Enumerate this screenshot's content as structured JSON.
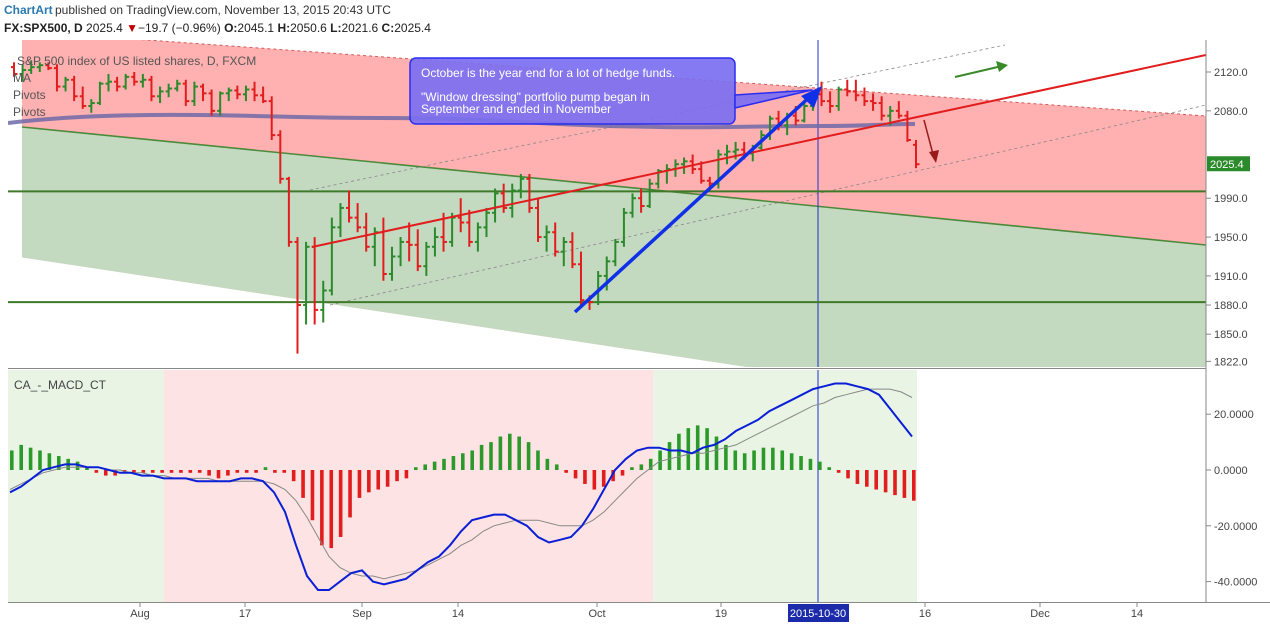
{
  "header": {
    "brand": "ChartArt",
    "published": "published on TradingView.com, November 13, 2015 20:43 UTC"
  },
  "symbol_bar": {
    "symbol": "FX:SPX500, D",
    "price": "2025.4",
    "change_arrow": "▼",
    "change": "−19.7 (−0.96%)",
    "o_label": "O:",
    "o": "2045.1",
    "h_label": "H:",
    "h": "2050.6",
    "l_label": "L:",
    "l": "2021.6",
    "c_label": "C:",
    "c": "2025.4"
  },
  "legend": {
    "title": "S&P 500 index of US listed shares, D, FXCM",
    "items": [
      "MA",
      "Pivots",
      "Pivots"
    ]
  },
  "annotation": {
    "line1": "October is the year end for a lot of hedge funds.",
    "line2": "\"Window dressing\" portfolio pump began in",
    "line3": "September and ended in November"
  },
  "indicator_label": "CA_-_MACD_CT",
  "crosshair_date": "2015-10-30",
  "last_price_label": "2025.4",
  "colors": {
    "up": "#2b8a2b",
    "down": "#e11d1d",
    "red_zone": "#ffb0b0",
    "green_zone": "#c3d9c0",
    "macd_line": "#0a1fd6",
    "signal_line": "#888888",
    "hist_up": "#2b9a2b",
    "hist_down": "#e11d1d",
    "trend_red": "#e11d1d",
    "trend_blue": "#1030e8",
    "annotation_bg": "#7b6ff0"
  },
  "chart_data": [
    {
      "type": "bar",
      "subtype": "ohlc",
      "title": "S&P 500 index of US listed shares, D, FXCM",
      "x_ticks": [
        "Aug",
        "17",
        "Sep",
        "14",
        "Oct",
        "19",
        "2015-10-30",
        "16",
        "Dec",
        "14"
      ],
      "y_ticks": [
        1822,
        1850,
        1880,
        1910,
        1950,
        1990,
        2080,
        2120
      ],
      "ylim": [
        1822,
        2150
      ],
      "horizontal_levels": [
        1997,
        1883
      ],
      "ohlc": [
        [
          2125,
          2130,
          2115,
          2118
        ],
        [
          2118,
          2128,
          2110,
          2122
        ],
        [
          2122,
          2132,
          2118,
          2125
        ],
        [
          2125,
          2130,
          2120,
          2127
        ],
        [
          2127,
          2130,
          2122,
          2124
        ],
        [
          2124,
          2128,
          2100,
          2105
        ],
        [
          2105,
          2115,
          2100,
          2112
        ],
        [
          2112,
          2116,
          2090,
          2095
        ],
        [
          2095,
          2105,
          2082,
          2085
        ],
        [
          2085,
          2092,
          2078,
          2088
        ],
        [
          2088,
          2110,
          2086,
          2108
        ],
        [
          2108,
          2118,
          2100,
          2110
        ],
        [
          2110,
          2115,
          2100,
          2105
        ],
        [
          2105,
          2118,
          2102,
          2115
        ],
        [
          2115,
          2120,
          2106,
          2110
        ],
        [
          2110,
          2118,
          2104,
          2112
        ],
        [
          2112,
          2116,
          2090,
          2095
        ],
        [
          2095,
          2105,
          2088,
          2100
        ],
        [
          2100,
          2108,
          2094,
          2103
        ],
        [
          2103,
          2112,
          2100,
          2108
        ],
        [
          2108,
          2112,
          2085,
          2090
        ],
        [
          2090,
          2110,
          2085,
          2105
        ],
        [
          2105,
          2108,
          2090,
          2098
        ],
        [
          2098,
          2102,
          2075,
          2080
        ],
        [
          2080,
          2100,
          2075,
          2098
        ],
        [
          2098,
          2104,
          2090,
          2101
        ],
        [
          2101,
          2106,
          2092,
          2097
        ],
        [
          2097,
          2106,
          2090,
          2102
        ],
        [
          2102,
          2110,
          2090,
          2096
        ],
        [
          2096,
          2105,
          2088,
          2090
        ],
        [
          2090,
          2095,
          2050,
          2055
        ],
        [
          2055,
          2060,
          2005,
          2010
        ],
        [
          2010,
          2012,
          1940,
          1945
        ],
        [
          1945,
          1950,
          1830,
          1880
        ],
        [
          1880,
          1945,
          1860,
          1940
        ],
        [
          1940,
          1950,
          1860,
          1875
        ],
        [
          1875,
          1905,
          1862,
          1895
        ],
        [
          1895,
          1970,
          1890,
          1960
        ],
        [
          1960,
          1985,
          1950,
          1980
        ],
        [
          1980,
          1998,
          1965,
          1970
        ],
        [
          1970,
          1985,
          1955,
          1960
        ],
        [
          1960,
          1975,
          1935,
          1940
        ],
        [
          1940,
          1960,
          1920,
          1955
        ],
        [
          1955,
          1970,
          1905,
          1912
        ],
        [
          1912,
          1940,
          1905,
          1930
        ],
        [
          1930,
          1950,
          1920,
          1945
        ],
        [
          1945,
          1965,
          1925,
          1942
        ],
        [
          1942,
          1958,
          1915,
          1920
        ],
        [
          1920,
          1945,
          1910,
          1940
        ],
        [
          1940,
          1960,
          1930,
          1950
        ],
        [
          1950,
          1975,
          1935,
          1945
        ],
        [
          1945,
          1975,
          1940,
          1970
        ],
        [
          1970,
          1990,
          1955,
          1965
        ],
        [
          1965,
          1978,
          1940,
          1945
        ],
        [
          1945,
          1965,
          1935,
          1960
        ],
        [
          1960,
          1980,
          1950,
          1975
        ],
        [
          1975,
          2000,
          1965,
          1995
        ],
        [
          1995,
          2005,
          1975,
          1980
        ],
        [
          1980,
          2005,
          1970,
          1998
        ],
        [
          1998,
          2015,
          1990,
          2010
        ],
        [
          2010,
          2015,
          1975,
          1980
        ],
        [
          1980,
          1990,
          1945,
          1950
        ],
        [
          1950,
          1962,
          1935,
          1955
        ],
        [
          1955,
          1965,
          1930,
          1935
        ],
        [
          1935,
          1950,
          1920,
          1945
        ],
        [
          1945,
          1955,
          1918,
          1922
        ],
        [
          1922,
          1935,
          1880,
          1885
        ],
        [
          1885,
          1890,
          1875,
          1883
        ],
        [
          1883,
          1915,
          1880,
          1910
        ],
        [
          1910,
          1930,
          1895,
          1925
        ],
        [
          1925,
          1948,
          1920,
          1945
        ],
        [
          1945,
          1980,
          1940,
          1975
        ],
        [
          1975,
          1995,
          1970,
          1990
        ],
        [
          1990,
          2000,
          1975,
          1982
        ],
        [
          1982,
          2010,
          1980,
          2005
        ],
        [
          2005,
          2020,
          2000,
          2018
        ],
        [
          2018,
          2025,
          2005,
          2020
        ],
        [
          2020,
          2030,
          2012,
          2025
        ],
        [
          2025,
          2032,
          2015,
          2028
        ],
        [
          2028,
          2035,
          2015,
          2020
        ],
        [
          2020,
          2028,
          2005,
          2008
        ],
        [
          2008,
          2012,
          1998,
          2005
        ],
        [
          2005,
          2040,
          2000,
          2035
        ],
        [
          2035,
          2045,
          2025,
          2038
        ],
        [
          2038,
          2048,
          2030,
          2040
        ],
        [
          2040,
          2048,
          2030,
          2036
        ],
        [
          2036,
          2045,
          2028,
          2042
        ],
        [
          2042,
          2060,
          2040,
          2055
        ],
        [
          2055,
          2075,
          2050,
          2072
        ],
        [
          2072,
          2080,
          2060,
          2065
        ],
        [
          2065,
          2078,
          2055,
          2075
        ],
        [
          2075,
          2085,
          2065,
          2070
        ],
        [
          2070,
          2088,
          2068,
          2085
        ],
        [
          2085,
          2100,
          2080,
          2097
        ],
        [
          2097,
          2110,
          2085,
          2090
        ],
        [
          2090,
          2100,
          2078,
          2085
        ],
        [
          2085,
          2105,
          2080,
          2102
        ],
        [
          2102,
          2112,
          2095,
          2100
        ],
        [
          2100,
          2112,
          2090,
          2096
        ],
        [
          2096,
          2104,
          2085,
          2090
        ],
        [
          2090,
          2098,
          2080,
          2088
        ],
        [
          2088,
          2095,
          2070,
          2075
        ],
        [
          2075,
          2085,
          2065,
          2080
        ],
        [
          2080,
          2090,
          2072,
          2075
        ],
        [
          2075,
          2080,
          2048,
          2050
        ],
        [
          2045,
          2050,
          2021,
          2025
        ]
      ]
    },
    {
      "type": "bar",
      "subtype": "macd",
      "title": "CA_-_MACD_CT",
      "y_ticks": [
        20.0,
        0.0,
        -20.0,
        -40.0
      ],
      "ylim": [
        -48,
        33
      ],
      "histogram": [
        7,
        9,
        8,
        7,
        6,
        5,
        4,
        3,
        1,
        -1,
        -2,
        -2,
        -1,
        -1,
        -1,
        -1,
        -1,
        -1,
        -1,
        -1,
        -1,
        -2,
        -3,
        -2,
        -1,
        -1,
        -1,
        1,
        -1,
        -1,
        -4,
        -10,
        -18,
        -27,
        -28,
        -24,
        -17,
        -10,
        -8,
        -7,
        -6,
        -4,
        -3,
        1,
        2,
        3,
        4,
        5,
        6,
        7,
        9,
        10,
        12,
        13,
        12,
        10,
        7,
        4,
        2,
        -1,
        -3,
        -5,
        -7,
        -6,
        -4,
        -2,
        1,
        2,
        4,
        7,
        10,
        13,
        15,
        16,
        15,
        12,
        9,
        7,
        6,
        7,
        8,
        8,
        7,
        6,
        5,
        4,
        3,
        1,
        -1,
        -3,
        -5,
        -6,
        -7,
        -8,
        -9,
        -10,
        -11
      ],
      "macd": [
        -8,
        -6,
        -3,
        0,
        1,
        2,
        2,
        1,
        1,
        0,
        -1,
        -1,
        -2,
        -2,
        -3,
        -3,
        -3,
        -4,
        -4,
        -4,
        -4,
        -3,
        -3,
        -4,
        -8,
        -15,
        -27,
        -38,
        -43,
        -43,
        -40,
        -37,
        -36,
        -40,
        -41,
        -40,
        -39,
        -36,
        -33,
        -31,
        -27,
        -22,
        -18,
        -17,
        -16,
        -16,
        -18,
        -20,
        -24,
        -26,
        -25,
        -24,
        -20,
        -14,
        -7,
        0,
        4,
        7,
        8,
        8,
        7,
        7,
        6,
        8,
        9,
        11,
        14,
        16,
        18,
        21,
        23,
        25,
        27,
        29,
        30,
        31,
        31,
        30,
        29,
        27,
        22,
        17,
        12
      ],
      "signal": [
        -7,
        -5,
        -3,
        -1,
        0,
        1,
        1,
        1,
        1,
        0,
        0,
        -1,
        -1,
        -2,
        -2,
        -3,
        -3,
        -3,
        -3,
        -4,
        -4,
        -4,
        -4,
        -4,
        -5,
        -7,
        -11,
        -17,
        -24,
        -31,
        -35,
        -37,
        -38,
        -38,
        -39,
        -38,
        -37,
        -36,
        -34,
        -32,
        -30,
        -27,
        -25,
        -22,
        -20,
        -19,
        -18,
        -18,
        -18,
        -19,
        -20,
        -20,
        -20,
        -18,
        -15,
        -11,
        -7,
        -3,
        0,
        3,
        4,
        5,
        6,
        6,
        7,
        8,
        9,
        11,
        13,
        15,
        17,
        19,
        21,
        23,
        24,
        26,
        27,
        28,
        29,
        29,
        29,
        28,
        26
      ]
    }
  ]
}
